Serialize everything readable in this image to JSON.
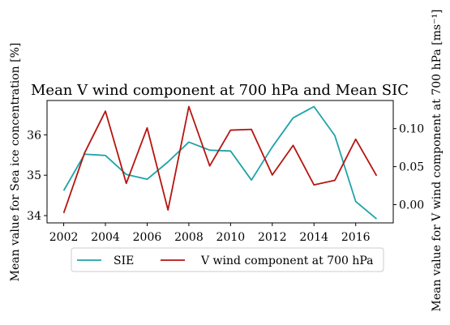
{
  "chart_data": {
    "type": "line",
    "title": "Mean V wind component at 700 hPa and Mean SIC",
    "ylabel_left": "Mean value for Sea ice concentration [%]",
    "ylabel_right": "Mean value for V wind component at 700 hPa [ms⁻¹]",
    "x": [
      2002,
      2003,
      2004,
      2005,
      2006,
      2007,
      2008,
      2009,
      2010,
      2011,
      2012,
      2013,
      2014,
      2015,
      2016,
      2017
    ],
    "xlim": [
      2001.2,
      2017.8
    ],
    "xticks": [
      "2002",
      "2004",
      "2006",
      "2008",
      "2010",
      "2012",
      "2014",
      "2016"
    ],
    "ylim_left": [
      33.82,
      36.85
    ],
    "yticks_left": [
      "34",
      "35",
      "36"
    ],
    "ylim_right": [
      -0.024,
      0.137
    ],
    "yticks_right": [
      "0.00",
      "0.05",
      "0.10"
    ],
    "series": [
      {
        "name": "SIE",
        "axis": "left",
        "color": "#1fa3a8",
        "values": [
          34.62,
          35.52,
          35.49,
          35.02,
          34.9,
          35.33,
          35.82,
          35.62,
          35.6,
          34.88,
          35.7,
          36.42,
          36.7,
          35.98,
          34.35,
          33.92
        ]
      },
      {
        "name": "V wind component at 700 hPa",
        "axis": "right",
        "color": "#b5150f",
        "values": [
          -0.011,
          0.068,
          0.123,
          0.028,
          0.101,
          -0.007,
          0.129,
          0.051,
          0.098,
          0.099,
          0.039,
          0.078,
          0.026,
          0.032,
          0.086,
          0.038
        ]
      }
    ],
    "legend_position": "bottom-center",
    "grid": false
  }
}
